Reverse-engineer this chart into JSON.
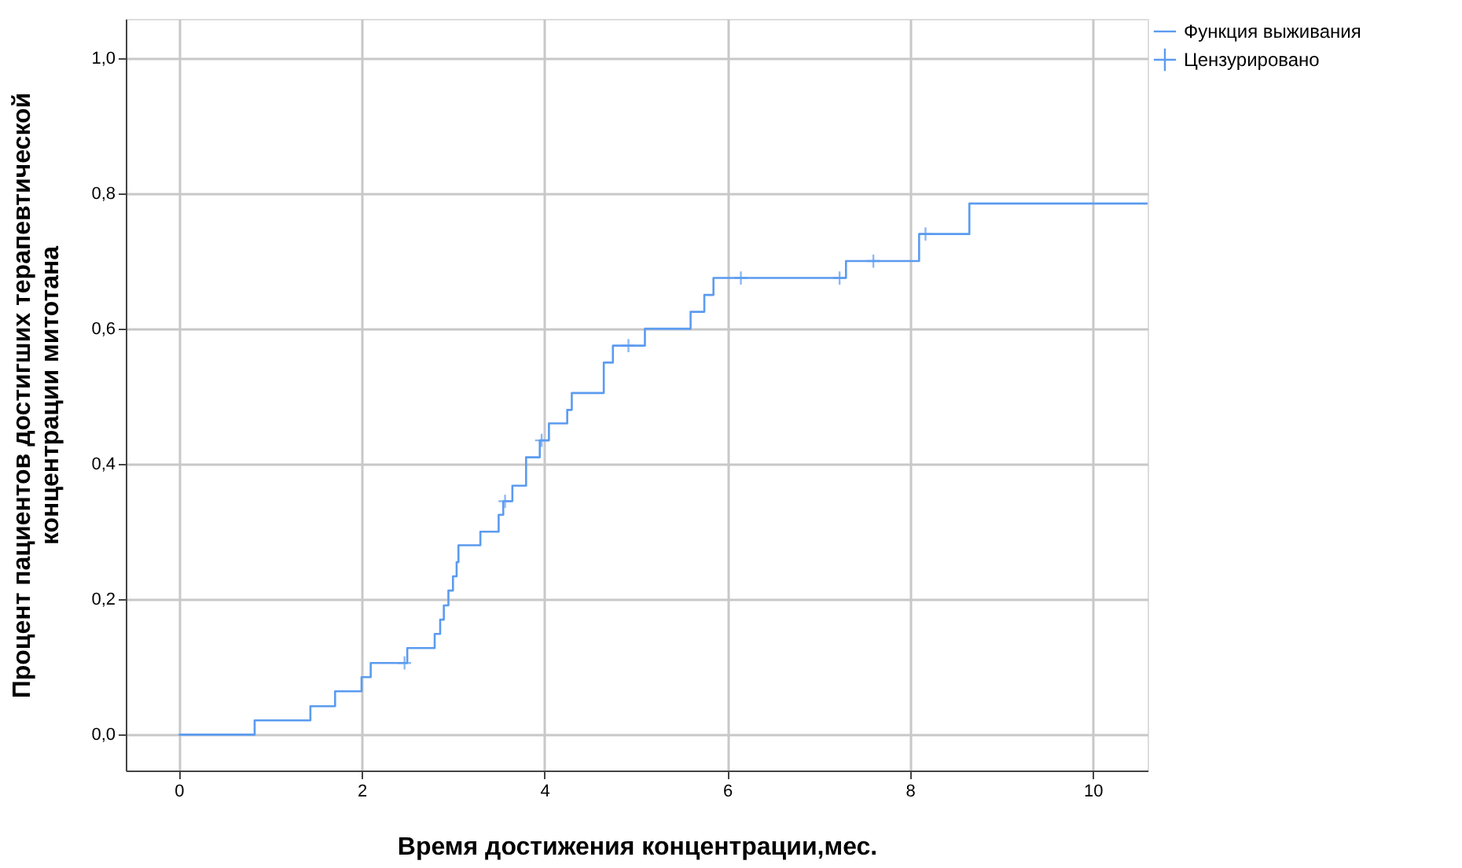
{
  "chart_data": {
    "type": "step",
    "xlabel": "Время достижения концентрации,мес.",
    "ylabel": "Процент пациентов достигших терапевтической\nконцентрации митотана",
    "xlim": [
      -0.58,
      10.6
    ],
    "ylim": [
      -0.053,
      1.058
    ],
    "xticks": [
      0,
      2,
      4,
      6,
      8,
      10
    ],
    "yticks": [
      {
        "value": 0,
        "label": "0,0"
      },
      {
        "value": 0.2,
        "label": "0,2"
      },
      {
        "value": 0.4,
        "label": "0,4"
      },
      {
        "value": 0.6,
        "label": "0,6"
      },
      {
        "value": 0.8,
        "label": "0,8"
      },
      {
        "value": 1.0,
        "label": "1,0"
      }
    ],
    "grid": true,
    "legend": "top right",
    "series": [
      {
        "name": "Функция выживания",
        "color": "#5b9bf0",
        "marker": "none",
        "x": [
          0,
          0.83,
          1.44,
          1.71,
          2.0,
          2.1,
          2.5,
          2.8,
          2.86,
          2.9,
          2.95,
          3.0,
          3.04,
          3.06,
          3.3,
          3.5,
          3.55,
          3.65,
          3.8,
          3.95,
          4.05,
          4.25,
          4.3,
          4.65,
          4.75,
          5.1,
          5.6,
          5.75,
          5.85,
          7.3,
          8.1,
          8.65,
          10.6
        ],
        "values": [
          0.0,
          0.021,
          0.042,
          0.064,
          0.085,
          0.106,
          0.128,
          0.149,
          0.17,
          0.191,
          0.213,
          0.234,
          0.255,
          0.28,
          0.3,
          0.325,
          0.345,
          0.368,
          0.41,
          0.435,
          0.46,
          0.48,
          0.505,
          0.55,
          0.575,
          0.6,
          0.625,
          0.65,
          0.675,
          0.7,
          0.74,
          0.785,
          0.785
        ]
      },
      {
        "name": "Цензурировано",
        "type": "scatter",
        "color": "#5b9bf0",
        "marker": "cross",
        "x": [
          2.47,
          3.57,
          3.97,
          4.92,
          6.15,
          7.23,
          7.6,
          8.17
        ],
        "values": [
          0.106,
          0.345,
          0.435,
          0.575,
          0.675,
          0.675,
          0.7,
          0.74
        ]
      }
    ]
  }
}
